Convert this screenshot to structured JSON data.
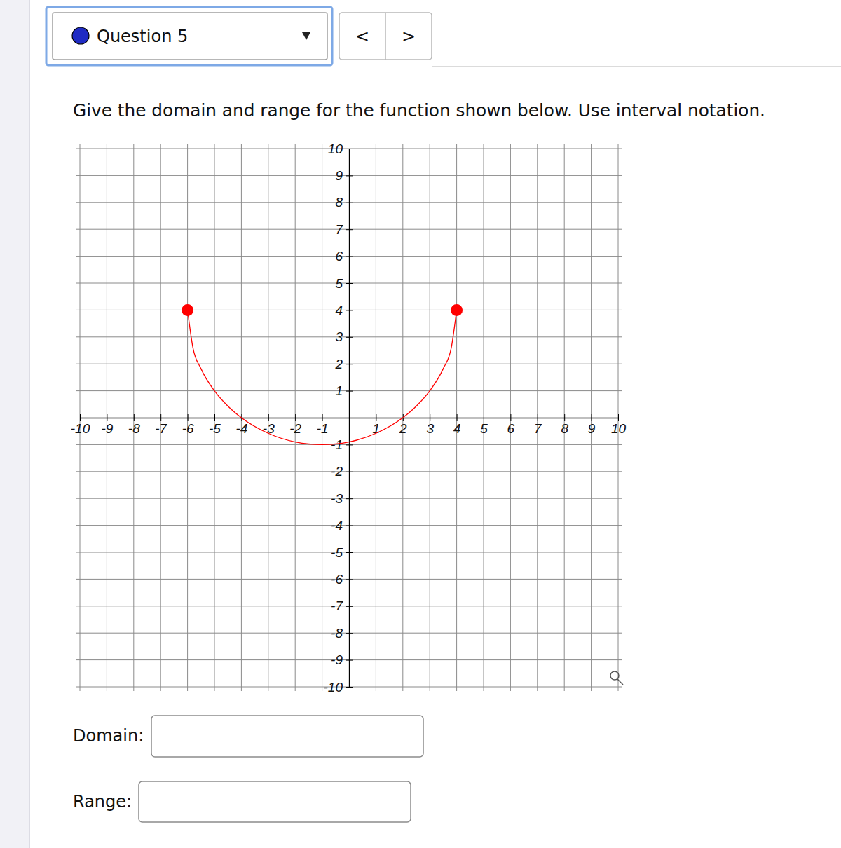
{
  "page": {
    "question": "Question 5",
    "prev": "<",
    "next": ">",
    "prompt": "Give the domain and range for the function shown below. Use interval notation.",
    "fields": [
      "Domain:",
      "Range:"
    ]
  },
  "chart_data": {
    "type": "line",
    "x": [
      -6,
      -5.8,
      -5.5,
      -5,
      -4.5,
      -4,
      -3,
      -2,
      -1,
      0,
      1,
      2,
      2.5,
      3,
      3.5,
      3.8,
      4
    ],
    "values": [
      4,
      2.6,
      1.82,
      1,
      0.43,
      0,
      -0.58,
      -0.9,
      -1,
      -0.9,
      -0.58,
      0,
      0.43,
      1,
      1.82,
      2.6,
      4
    ],
    "color": "#ff0000",
    "marker": "endpoint",
    "grid": true,
    "xlim": [
      -10,
      10
    ],
    "ylim": [
      -10,
      10
    ],
    "xticks": [
      -10,
      -9,
      -8,
      -7,
      -6,
      -5,
      -4,
      -3,
      -2,
      -1,
      1,
      2,
      3,
      4,
      5,
      6,
      7,
      8,
      9,
      10
    ],
    "yticks": [
      -10,
      -9,
      -8,
      -7,
      -6,
      -5,
      -4,
      -3,
      -2,
      -1,
      1,
      2,
      3,
      4,
      5,
      6,
      7,
      8,
      9,
      10
    ]
  }
}
